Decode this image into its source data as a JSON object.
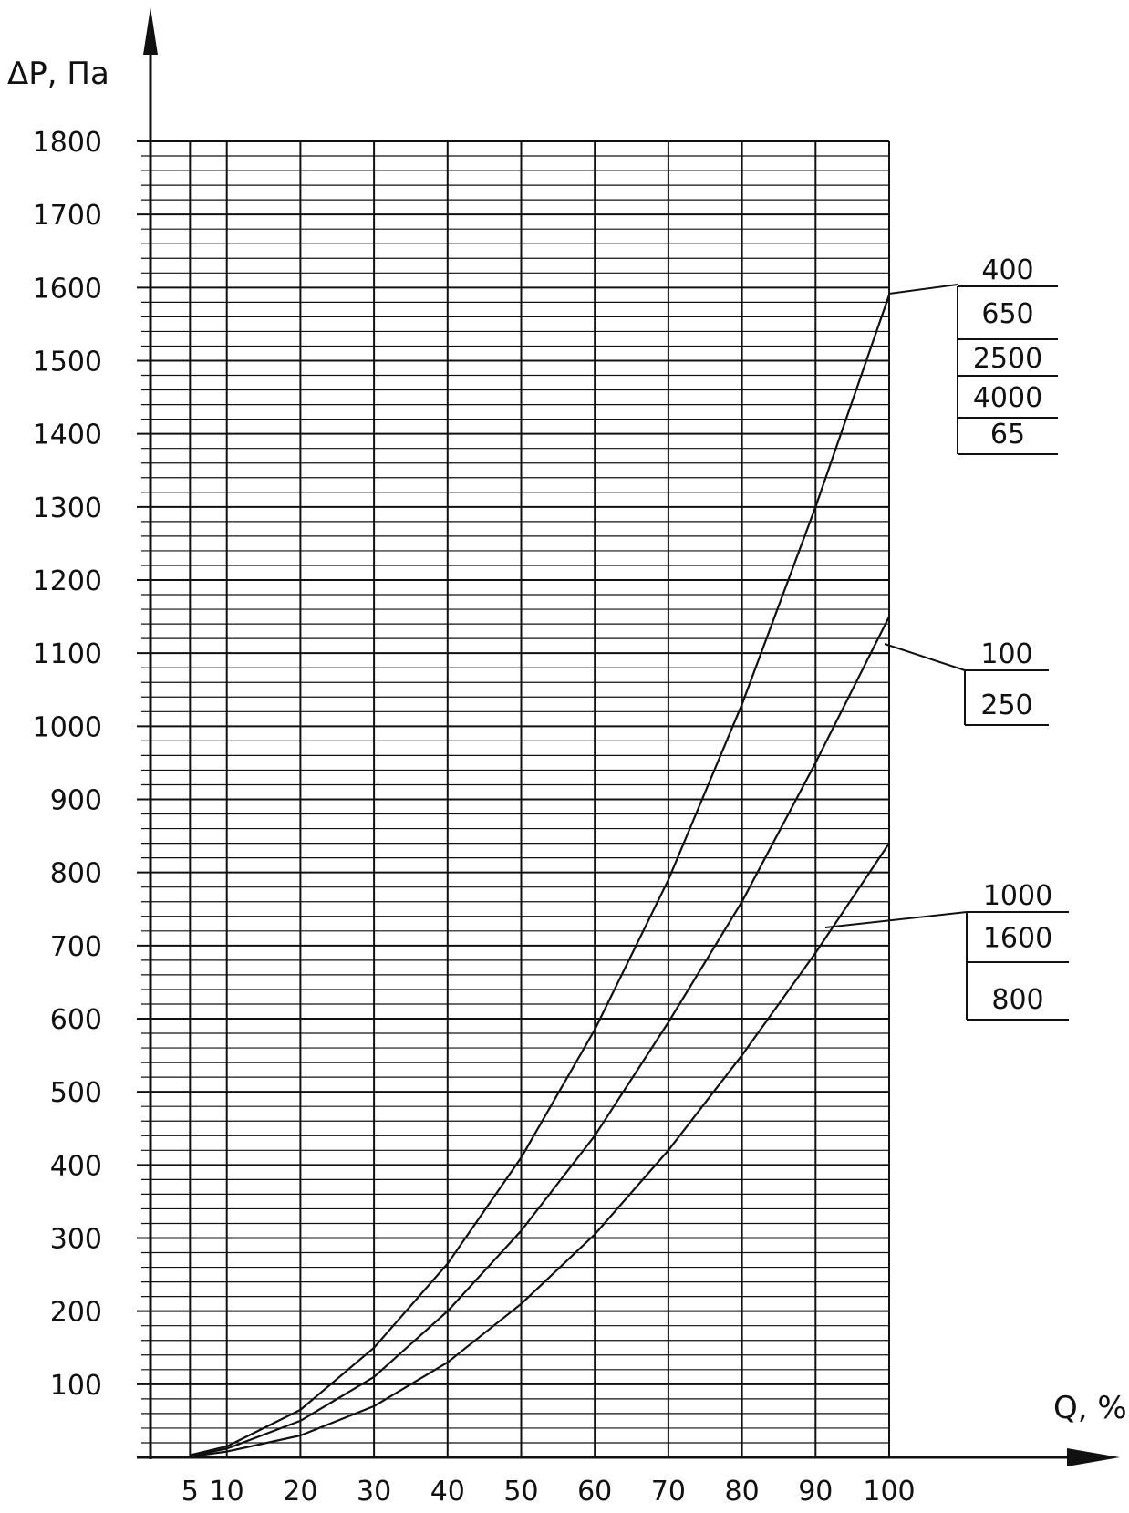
{
  "chart_data": {
    "type": "line",
    "ylabel": "ΔP, Па",
    "xlabel": "Q, %",
    "xlim": [
      0,
      100
    ],
    "ylim": [
      0,
      1800
    ],
    "x_ticks": [
      "5",
      "10",
      "20",
      "30",
      "40",
      "50",
      "60",
      "70",
      "80",
      "90",
      "100"
    ],
    "y_ticks": [
      "100",
      "200",
      "300",
      "400",
      "500",
      "600",
      "700",
      "800",
      "900",
      "1000",
      "1100",
      "1200",
      "1300",
      "1400",
      "1500",
      "1600",
      "1700",
      "1800"
    ],
    "grid": true,
    "series": [
      {
        "labels": [
          "400",
          "650",
          "2500",
          "4000",
          "65"
        ],
        "x": [
          5,
          10,
          20,
          30,
          40,
          50,
          60,
          70,
          80,
          90,
          100
        ],
        "y": [
          3,
          15,
          65,
          150,
          265,
          410,
          585,
          790,
          1030,
          1300,
          1590
        ]
      },
      {
        "labels": [
          "100",
          "250"
        ],
        "x": [
          5,
          10,
          20,
          30,
          40,
          50,
          60,
          70,
          80,
          90,
          100
        ],
        "y": [
          2,
          12,
          50,
          110,
          200,
          310,
          440,
          595,
          760,
          950,
          1150
        ]
      },
      {
        "labels": [
          "1000",
          "1600",
          "800"
        ],
        "x": [
          5,
          10,
          20,
          30,
          40,
          50,
          60,
          70,
          80,
          90,
          100
        ],
        "y": [
          1,
          8,
          30,
          70,
          130,
          210,
          305,
          420,
          550,
          690,
          840
        ]
      }
    ]
  }
}
